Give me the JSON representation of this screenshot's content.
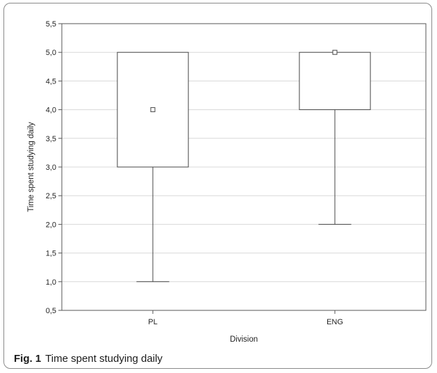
{
  "figure": {
    "caption_label": "Fig. 1",
    "caption_text": "Time spent studying daily"
  },
  "chart_data": {
    "type": "box",
    "xlabel": "Division",
    "ylabel": "Time spent studying daily",
    "ylim": [
      0.5,
      5.5
    ],
    "yticks": [
      "0,5",
      "1,0",
      "1,5",
      "2,0",
      "2,5",
      "3,0",
      "3,5",
      "4,0",
      "4,5",
      "5,0",
      "5,5"
    ],
    "grid": true,
    "categories": [
      "PL",
      "ENG"
    ],
    "boxes": [
      {
        "category": "PL",
        "whisker_low": 1.0,
        "q1": 3.0,
        "median": 4.0,
        "q3": 5.0,
        "whisker_high": 5.0
      },
      {
        "category": "ENG",
        "whisker_low": 2.0,
        "q1": 4.0,
        "median": 5.0,
        "q3": 5.0,
        "whisker_high": 5.0
      }
    ]
  },
  "colors": {
    "box_stroke": "#444444",
    "grid": "#d8d8d8",
    "frame": "#8a8a8a"
  }
}
